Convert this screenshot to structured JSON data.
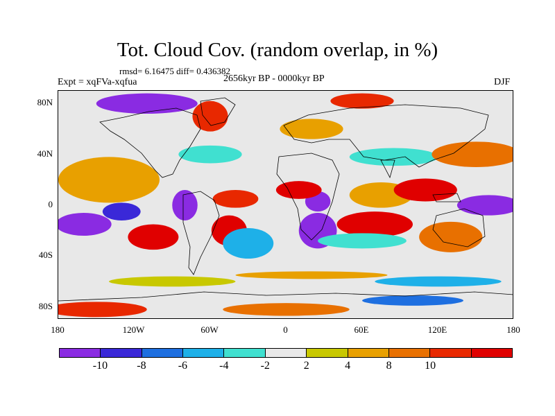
{
  "title": "Tot. Cloud Cov. (random overlap, in %)",
  "stats": "rmsd= 6.16475 diff= 0.436382",
  "experiment": "Expt = xqFVa-xqfua",
  "period": "2656kyr BP - 0000kyr BP",
  "season": "DJF",
  "map": {
    "projection": "cylindrical equidistant",
    "lon_range": [
      -180,
      180
    ],
    "lat_range": [
      -90,
      90
    ],
    "y_ticks": [
      {
        "label": "80N",
        "lat": 80
      },
      {
        "label": "40N",
        "lat": 40
      },
      {
        "label": "0",
        "lat": 0
      },
      {
        "label": "40S",
        "lat": -40
      },
      {
        "label": "80S",
        "lat": -80
      }
    ],
    "x_ticks": [
      {
        "label": "180",
        "lon": -180
      },
      {
        "label": "120W",
        "lon": -120
      },
      {
        "label": "60W",
        "lon": -60
      },
      {
        "label": "0",
        "lon": 0
      },
      {
        "label": "60E",
        "lon": 60
      },
      {
        "label": "120E",
        "lon": 120
      },
      {
        "label": "180",
        "lon": 180
      }
    ]
  },
  "colorbar": {
    "colors": [
      "#8a2be2",
      "#3a28d8",
      "#1e6fe0",
      "#1eb0e8",
      "#40e0d0",
      "#e8e8e8",
      "#c8c800",
      "#e8a000",
      "#e87000",
      "#e82800",
      "#e00000"
    ],
    "labels": [
      {
        "text": "-10",
        "boundary": 1
      },
      {
        "text": "-8",
        "boundary": 2
      },
      {
        "text": "-6",
        "boundary": 3
      },
      {
        "text": "-4",
        "boundary": 4
      },
      {
        "text": "-2",
        "boundary": 5
      },
      {
        "text": "2",
        "boundary": 6
      },
      {
        "text": "4",
        "boundary": 7
      },
      {
        "text": "8",
        "boundary": 8
      },
      {
        "text": "10",
        "boundary": 9
      }
    ]
  },
  "field_blobs": [
    {
      "lon": -160,
      "lat": -15,
      "rx": 22,
      "ry": 9,
      "level": 0
    },
    {
      "lon": -130,
      "lat": -5,
      "rx": 15,
      "ry": 7,
      "level": 1
    },
    {
      "lon": -105,
      "lat": -25,
      "rx": 20,
      "ry": 10,
      "level": 10
    },
    {
      "lon": -140,
      "lat": 20,
      "rx": 40,
      "ry": 18,
      "level": 7
    },
    {
      "lon": -80,
      "lat": 0,
      "rx": 10,
      "ry": 12,
      "level": 0
    },
    {
      "lon": -45,
      "lat": -20,
      "rx": 14,
      "ry": 12,
      "level": 10
    },
    {
      "lon": -30,
      "lat": -30,
      "rx": 20,
      "ry": 12,
      "level": 3
    },
    {
      "lon": -40,
      "lat": 5,
      "rx": 18,
      "ry": 7,
      "level": 9
    },
    {
      "lon": -60,
      "lat": 40,
      "rx": 25,
      "ry": 7,
      "level": 4
    },
    {
      "lon": 25,
      "lat": -20,
      "rx": 15,
      "ry": 14,
      "level": 0
    },
    {
      "lon": 25,
      "lat": 3,
      "rx": 10,
      "ry": 8,
      "level": 0
    },
    {
      "lon": 10,
      "lat": 12,
      "rx": 18,
      "ry": 7,
      "level": 10
    },
    {
      "lon": 70,
      "lat": -15,
      "rx": 30,
      "ry": 10,
      "level": 10
    },
    {
      "lon": 60,
      "lat": -28,
      "rx": 35,
      "ry": 6,
      "level": 4
    },
    {
      "lon": 75,
      "lat": 8,
      "rx": 25,
      "ry": 10,
      "level": 7
    },
    {
      "lon": 110,
      "lat": 12,
      "rx": 25,
      "ry": 9,
      "level": 10
    },
    {
      "lon": 85,
      "lat": 38,
      "rx": 35,
      "ry": 7,
      "level": 4
    },
    {
      "lon": 160,
      "lat": 0,
      "rx": 25,
      "ry": 8,
      "level": 0
    },
    {
      "lon": 130,
      "lat": -25,
      "rx": 25,
      "ry": 12,
      "level": 8
    },
    {
      "lon": 150,
      "lat": 40,
      "rx": 35,
      "ry": 10,
      "level": 8
    },
    {
      "lon": -110,
      "lat": 80,
      "rx": 40,
      "ry": 8,
      "level": 0
    },
    {
      "lon": -60,
      "lat": 70,
      "rx": 14,
      "ry": 12,
      "level": 9
    },
    {
      "lon": 60,
      "lat": 82,
      "rx": 25,
      "ry": 6,
      "level": 9
    },
    {
      "lon": 20,
      "lat": 60,
      "rx": 25,
      "ry": 8,
      "level": 7
    },
    {
      "lon": -150,
      "lat": -82,
      "rx": 40,
      "ry": 6,
      "level": 9
    },
    {
      "lon": 0,
      "lat": -82,
      "rx": 50,
      "ry": 5,
      "level": 8
    },
    {
      "lon": 100,
      "lat": -75,
      "rx": 40,
      "ry": 4,
      "level": 2
    },
    {
      "lon": -90,
      "lat": -60,
      "rx": 50,
      "ry": 4,
      "level": 6
    },
    {
      "lon": 20,
      "lat": -55,
      "rx": 60,
      "ry": 3,
      "level": 7
    },
    {
      "lon": 120,
      "lat": -60,
      "rx": 50,
      "ry": 4,
      "level": 3
    }
  ]
}
